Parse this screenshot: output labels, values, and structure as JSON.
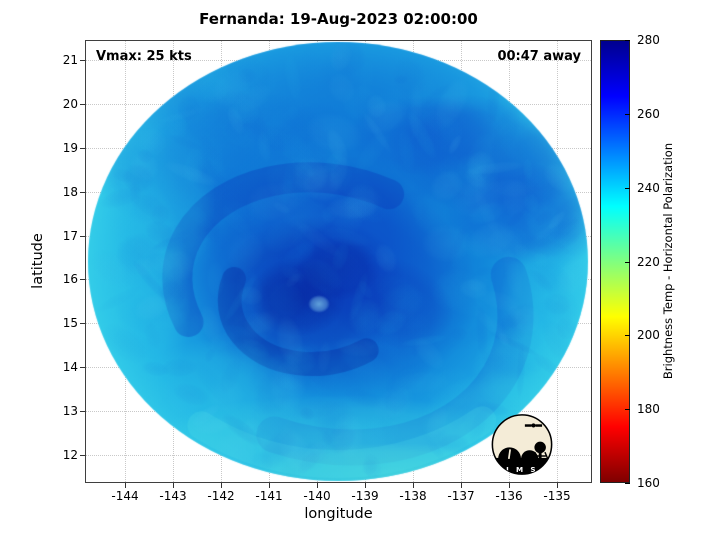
{
  "figure": {
    "title": "Fernanda: 19-Aug-2023 02:00:00",
    "vmax_label": "Vmax: 25 kts",
    "countdown_label": "00:47 away"
  },
  "axes": {
    "xlabel": "longitude",
    "ylabel": "latitude",
    "x_ticks": [
      "-144",
      "-143",
      "-142",
      "-141",
      "-140",
      "-139",
      "-138",
      "-137",
      "-136",
      "-135"
    ],
    "y_ticks": [
      "21",
      "20",
      "19",
      "18",
      "17",
      "16",
      "15",
      "14",
      "13",
      "12"
    ]
  },
  "colorbar": {
    "label": "Brightness Temp - Horizontal Polarization",
    "ticks": [
      "280",
      "260",
      "240",
      "220",
      "200",
      "180",
      "160"
    ],
    "min": 160,
    "max": 280,
    "colormap": "jet-reversed"
  },
  "logo": {
    "name": "CIMSS",
    "text": "C I M S S"
  },
  "chart_data": {
    "type": "heatmap",
    "title": "Fernanda: 19-Aug-2023 02:00:00",
    "xlabel": "longitude",
    "ylabel": "latitude",
    "xlim": [
      -144.8,
      -134.3
    ],
    "ylim": [
      11.4,
      21.5
    ],
    "x_ticks": [
      -144,
      -143,
      -142,
      -141,
      -140,
      -139,
      -138,
      -137,
      -136,
      -135
    ],
    "y_ticks": [
      21,
      20,
      19,
      18,
      17,
      16,
      15,
      14,
      13,
      12
    ],
    "grid": true,
    "background": "#ffffff",
    "colorbar": {
      "label": "Brightness Temp - Horizontal Polarization",
      "range": [
        160,
        280
      ],
      "tick_step": 20,
      "colormap": "jet reversed (low=dark red, high=dark blue)"
    },
    "annotations": [
      {
        "text": "Vmax: 25 kts",
        "position": "top-left"
      },
      {
        "text": "00:47 away",
        "position": "top-right"
      }
    ],
    "swath": {
      "shape": "elliptical disk",
      "center_lon": -139.56,
      "center_lat": 16.4,
      "radius_lon": 5.2,
      "radius_lat": 5.0
    },
    "storm_center_estimate": {
      "lon": -140.4,
      "lat": 16.0
    },
    "sample_grid": {
      "lons": [
        -144,
        -143,
        -142,
        -141,
        -140,
        -139,
        -138,
        -137,
        -136,
        -135
      ],
      "lats": [
        21,
        20,
        19,
        18,
        17,
        16,
        15,
        14,
        13,
        12
      ],
      "units": "K",
      "values_K": [
        [
          null,
          null,
          null,
          250,
          252,
          253,
          252,
          250,
          null,
          null
        ],
        [
          null,
          null,
          248,
          252,
          255,
          255,
          254,
          252,
          248,
          null
        ],
        [
          null,
          245,
          250,
          255,
          258,
          257,
          255,
          252,
          250,
          245
        ],
        [
          242,
          248,
          252,
          258,
          262,
          260,
          258,
          255,
          250,
          246
        ],
        [
          240,
          250,
          258,
          265,
          268,
          266,
          262,
          258,
          252,
          248
        ],
        [
          238,
          248,
          260,
          268,
          272,
          270,
          262,
          256,
          250,
          246
        ],
        [
          236,
          244,
          255,
          264,
          268,
          264,
          256,
          250,
          246,
          244
        ],
        [
          null,
          240,
          248,
          256,
          260,
          256,
          250,
          246,
          242,
          null
        ],
        [
          null,
          236,
          240,
          244,
          246,
          244,
          240,
          238,
          236,
          null
        ],
        [
          null,
          null,
          234,
          236,
          238,
          238,
          236,
          234,
          null,
          null
        ]
      ]
    }
  }
}
